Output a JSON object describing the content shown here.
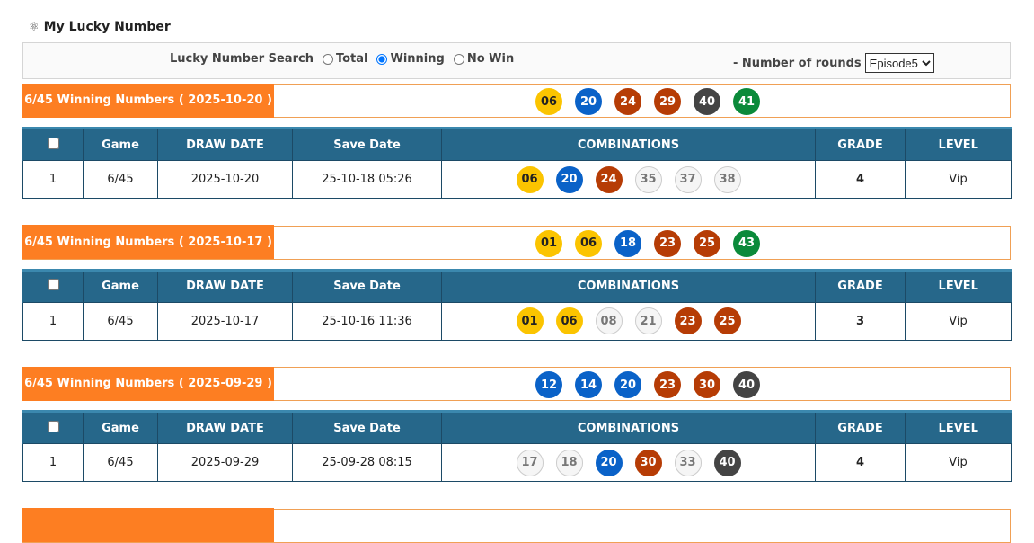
{
  "page": {
    "title": "My Lucky Number",
    "title_icon": "atom-icon"
  },
  "search": {
    "label": "Lucky Number Search",
    "options": [
      "Total",
      "Winning",
      "No Win"
    ],
    "selected": "Winning",
    "rounds_label": "- Number of rounds",
    "rounds_value": "Episode5"
  },
  "columns": [
    "",
    "Game",
    "DRAW DATE",
    "Save Date",
    "COMBINATIONS",
    "GRADE",
    "LEVEL"
  ],
  "colors": {
    "yellow": "#fbc400",
    "blue": "#0a62c8",
    "red": "#b63c05",
    "gray": "#444444",
    "green": "#0b8a3a",
    "header": "#26678a",
    "orange": "#fd7e22"
  },
  "sections": [
    {
      "label": "6/45 Winning Numbers ( 2025-10-20 )",
      "winning": [
        {
          "n": "06",
          "c": "yellow"
        },
        {
          "n": "20",
          "c": "blue"
        },
        {
          "n": "24",
          "c": "red"
        },
        {
          "n": "29",
          "c": "red"
        },
        {
          "n": "40",
          "c": "gray"
        },
        {
          "n": "41",
          "c": "green"
        }
      ],
      "row": {
        "no": "1",
        "game": "6/45",
        "draw_date": "2025-10-20",
        "save_date": "25-10-18 05:26",
        "combo": [
          {
            "n": "06",
            "c": "yellow"
          },
          {
            "n": "20",
            "c": "blue"
          },
          {
            "n": "24",
            "c": "red"
          },
          {
            "n": "35",
            "c": "miss"
          },
          {
            "n": "37",
            "c": "miss"
          },
          {
            "n": "38",
            "c": "miss"
          }
        ],
        "grade": "4",
        "level": "Vip"
      }
    },
    {
      "label": "6/45 Winning Numbers ( 2025-10-17 )",
      "winning": [
        {
          "n": "01",
          "c": "yellow"
        },
        {
          "n": "06",
          "c": "yellow"
        },
        {
          "n": "18",
          "c": "blue"
        },
        {
          "n": "23",
          "c": "red"
        },
        {
          "n": "25",
          "c": "red"
        },
        {
          "n": "43",
          "c": "green"
        }
      ],
      "row": {
        "no": "1",
        "game": "6/45",
        "draw_date": "2025-10-17",
        "save_date": "25-10-16 11:36",
        "combo": [
          {
            "n": "01",
            "c": "yellow"
          },
          {
            "n": "06",
            "c": "yellow"
          },
          {
            "n": "08",
            "c": "miss"
          },
          {
            "n": "21",
            "c": "miss"
          },
          {
            "n": "23",
            "c": "red"
          },
          {
            "n": "25",
            "c": "red"
          }
        ],
        "grade": "3",
        "level": "Vip"
      }
    },
    {
      "label": "6/45 Winning Numbers ( 2025-09-29 )",
      "winning": [
        {
          "n": "12",
          "c": "blue"
        },
        {
          "n": "14",
          "c": "blue"
        },
        {
          "n": "20",
          "c": "blue"
        },
        {
          "n": "23",
          "c": "red"
        },
        {
          "n": "30",
          "c": "red"
        },
        {
          "n": "40",
          "c": "gray"
        }
      ],
      "row": {
        "no": "1",
        "game": "6/45",
        "draw_date": "2025-09-29",
        "save_date": "25-09-28 08:15",
        "combo": [
          {
            "n": "17",
            "c": "miss"
          },
          {
            "n": "18",
            "c": "miss"
          },
          {
            "n": "20",
            "c": "blue"
          },
          {
            "n": "30",
            "c": "red"
          },
          {
            "n": "33",
            "c": "miss"
          },
          {
            "n": "40",
            "c": "gray"
          }
        ],
        "grade": "4",
        "level": "Vip"
      }
    },
    {
      "label": "",
      "winning": [],
      "row": null
    }
  ]
}
